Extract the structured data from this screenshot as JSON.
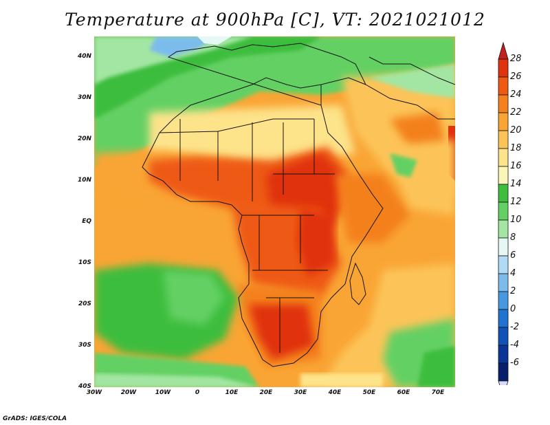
{
  "title": "Temperature at 900hPa [C], VT: 2021021012",
  "credit": "GrADS: IGES/COLA",
  "map": {
    "projection": "lat-lon",
    "lon_range": [
      -30,
      75
    ],
    "lat_range": [
      -40,
      45
    ],
    "lat_labels": [
      "40N",
      "30N",
      "20N",
      "10N",
      "EQ",
      "10S",
      "20S",
      "30S",
      "40S"
    ],
    "lat_values": [
      40,
      30,
      20,
      10,
      0,
      -10,
      -20,
      -30,
      -40
    ],
    "lon_labels": [
      "30W",
      "20W",
      "10W",
      "0",
      "10E",
      "20E",
      "30E",
      "40E",
      "50E",
      "60E",
      "70E"
    ],
    "lon_values": [
      -30,
      -20,
      -10,
      0,
      10,
      20,
      30,
      40,
      50,
      60,
      70
    ]
  },
  "colorbar": {
    "labels": [
      "28",
      "26",
      "24",
      "22",
      "20",
      "18",
      "16",
      "14",
      "12",
      "10",
      "8",
      "6",
      "4",
      "2",
      "0",
      "-2",
      "-4",
      "-6"
    ],
    "colors": [
      "#e0320e",
      "#ee5a12",
      "#f4801e",
      "#f9a535",
      "#fcc458",
      "#fde38a",
      "#fbf6b8",
      "#3ebd3e",
      "#64d064",
      "#a3e6a3",
      "#e6f8f4",
      "#b0daf5",
      "#7cbcec",
      "#4898e0",
      "#2272d0",
      "#1052b8",
      "#0a3596",
      "#08206b"
    ],
    "over_color": "#c42020",
    "under_color": "#d8d8f8"
  }
}
